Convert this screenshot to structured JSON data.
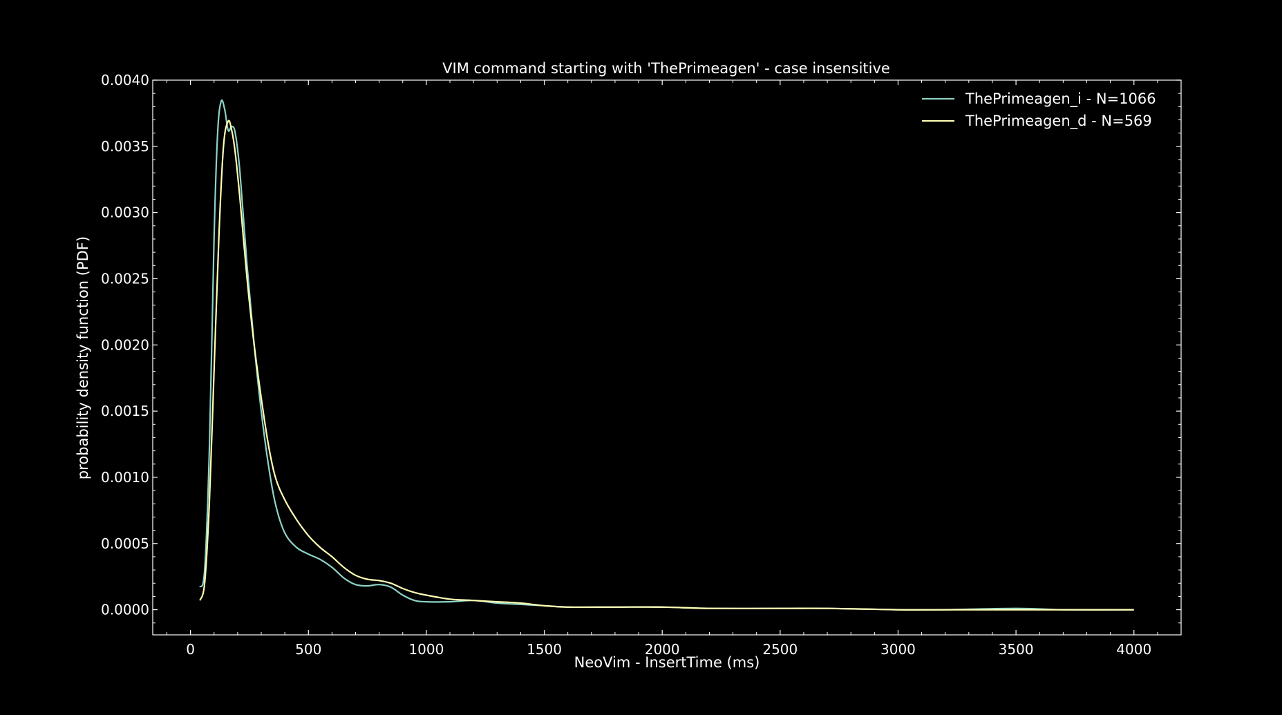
{
  "chart_data": {
    "type": "line",
    "title": "VIM command starting with 'ThePrimeagen' - case insensitive",
    "xlabel": "NeoVim - InsertTime (ms)",
    "ylabel": "probability density function (PDF)",
    "xlim": [
      -160,
      4200
    ],
    "ylim": [
      -0.00019,
      0.004
    ],
    "xticks": [
      0,
      500,
      1000,
      1500,
      2000,
      2500,
      3000,
      3500,
      4000
    ],
    "xtick_labels": [
      "0",
      "500",
      "1000",
      "1500",
      "2000",
      "2500",
      "3000",
      "3500",
      "4000"
    ],
    "yticks": [
      0.0,
      0.0005,
      0.001,
      0.0015,
      0.002,
      0.0025,
      0.003,
      0.0035,
      0.004
    ],
    "ytick_labels": [
      "0.0000",
      "0.0005",
      "0.0010",
      "0.0015",
      "0.0020",
      "0.0025",
      "0.0030",
      "0.0035",
      "0.0040"
    ],
    "grid": false,
    "legend_position": "top-right",
    "series": [
      {
        "name": "ThePrimeagen_i - N=1066",
        "color": "#8dd3c7",
        "points": [
          [
            40,
            0.00017
          ],
          [
            60,
            0.0003
          ],
          [
            80,
            0.0012
          ],
          [
            100,
            0.0028
          ],
          [
            115,
            0.0036
          ],
          [
            130,
            0.00384
          ],
          [
            145,
            0.00378
          ],
          [
            160,
            0.00362
          ],
          [
            175,
            0.00365
          ],
          [
            190,
            0.0036
          ],
          [
            210,
            0.0033
          ],
          [
            240,
            0.0026
          ],
          [
            270,
            0.002
          ],
          [
            300,
            0.0015
          ],
          [
            330,
            0.0011
          ],
          [
            360,
            0.0008
          ],
          [
            400,
            0.00058
          ],
          [
            450,
            0.00047
          ],
          [
            500,
            0.00042
          ],
          [
            550,
            0.00038
          ],
          [
            600,
            0.00032
          ],
          [
            650,
            0.00024
          ],
          [
            700,
            0.00019
          ],
          [
            750,
            0.00018
          ],
          [
            800,
            0.00019
          ],
          [
            850,
            0.00017
          ],
          [
            900,
            0.00011
          ],
          [
            950,
            7e-05
          ],
          [
            1000,
            6e-05
          ],
          [
            1100,
            6e-05
          ],
          [
            1200,
            7e-05
          ],
          [
            1300,
            5e-05
          ],
          [
            1400,
            4e-05
          ],
          [
            1500,
            3e-05
          ],
          [
            1600,
            2e-05
          ],
          [
            1800,
            2e-05
          ],
          [
            2000,
            2e-05
          ],
          [
            2200,
            1e-05
          ],
          [
            2500,
            1e-05
          ],
          [
            2700,
            1e-05
          ],
          [
            3000,
            0.0
          ],
          [
            3200,
            0.0
          ],
          [
            3500,
            1e-05
          ],
          [
            3700,
            0.0
          ],
          [
            4000,
            0.0
          ]
        ]
      },
      {
        "name": "ThePrimeagen_d - N=569",
        "color": "#ffffb3",
        "points": [
          [
            40,
            7e-05
          ],
          [
            60,
            0.0002
          ],
          [
            80,
            0.0008
          ],
          [
            100,
            0.0018
          ],
          [
            120,
            0.0028
          ],
          [
            140,
            0.0035
          ],
          [
            160,
            0.00369
          ],
          [
            175,
            0.00362
          ],
          [
            190,
            0.00345
          ],
          [
            210,
            0.0031
          ],
          [
            240,
            0.0025
          ],
          [
            270,
            0.002
          ],
          [
            300,
            0.0016
          ],
          [
            330,
            0.00125
          ],
          [
            360,
            0.001
          ],
          [
            400,
            0.00083
          ],
          [
            450,
            0.00068
          ],
          [
            500,
            0.00056
          ],
          [
            550,
            0.00047
          ],
          [
            600,
            0.0004
          ],
          [
            650,
            0.00032
          ],
          [
            700,
            0.00026
          ],
          [
            750,
            0.00023
          ],
          [
            800,
            0.00022
          ],
          [
            850,
            0.0002
          ],
          [
            900,
            0.00016
          ],
          [
            950,
            0.00013
          ],
          [
            1000,
            0.00011
          ],
          [
            1100,
            8e-05
          ],
          [
            1200,
            7e-05
          ],
          [
            1300,
            6e-05
          ],
          [
            1400,
            5e-05
          ],
          [
            1500,
            3e-05
          ],
          [
            1600,
            2e-05
          ],
          [
            1800,
            2e-05
          ],
          [
            2000,
            2e-05
          ],
          [
            2200,
            1e-05
          ],
          [
            2500,
            1e-05
          ],
          [
            2700,
            1e-05
          ],
          [
            3000,
            0.0
          ],
          [
            3200,
            0.0
          ],
          [
            3500,
            0.0
          ],
          [
            3700,
            0.0
          ],
          [
            4000,
            0.0
          ]
        ]
      }
    ]
  }
}
